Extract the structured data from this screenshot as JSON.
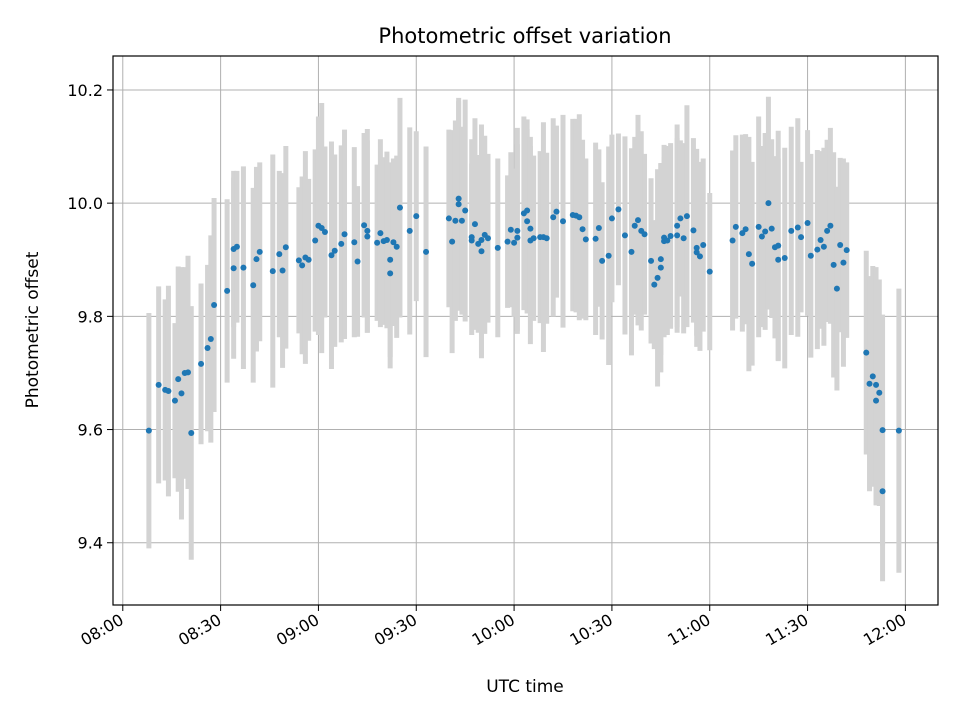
{
  "chart_data": {
    "type": "scatter",
    "title": "Photometric offset variation",
    "xlabel": "UTC time",
    "ylabel": "Photometric offset",
    "grid": true,
    "xlim": [
      "07:57",
      "12:10"
    ],
    "ylim": [
      9.29,
      10.26
    ],
    "x_ticks": [
      "08:00",
      "08:30",
      "09:00",
      "09:30",
      "10:00",
      "10:30",
      "11:00",
      "11:30",
      "12:00"
    ],
    "y_ticks": [
      9.4,
      9.6,
      9.8,
      10.0,
      10.2
    ],
    "colors": {
      "points": "#1f77b4",
      "errorbars": "#d3d3d3",
      "grid": "#b0b0b0"
    },
    "series": [
      {
        "points": [
          [
            "08:08",
            9.598,
            0.208
          ],
          [
            "08:11",
            9.679,
            0.174
          ],
          [
            "08:13",
            9.67,
            0.16
          ],
          [
            "08:14",
            9.668,
            0.186
          ],
          [
            "08:16",
            9.651,
            0.137
          ],
          [
            "08:17",
            9.689,
            0.199
          ],
          [
            "08:18",
            9.664,
            0.223
          ],
          [
            "08:19",
            9.7,
            0.187
          ],
          [
            "08:20",
            9.701,
            0.206
          ],
          [
            "08:21",
            9.594,
            0.224
          ],
          [
            "08:24",
            9.716,
            0.142
          ],
          [
            "08:26",
            9.744,
            0.147
          ],
          [
            "08:27",
            9.76,
            0.183
          ],
          [
            "08:28",
            9.82,
            0.189
          ],
          [
            "08:32",
            9.845,
            0.162
          ],
          [
            "08:34",
            9.885,
            0.16
          ],
          [
            "08:34",
            9.919,
            0.138
          ],
          [
            "08:35",
            9.923,
            0.134
          ],
          [
            "08:37",
            9.886,
            0.179
          ],
          [
            "08:40",
            9.855,
            0.172
          ],
          [
            "08:41",
            9.901,
            0.163
          ],
          [
            "08:42",
            9.914,
            0.158
          ],
          [
            "08:46",
            9.88,
            0.206
          ],
          [
            "08:48",
            9.91,
            0.147
          ],
          [
            "08:49",
            9.881,
            0.172
          ],
          [
            "08:50",
            9.922,
            0.179
          ],
          [
            "08:54",
            9.899,
            0.129
          ],
          [
            "08:55",
            9.89,
            0.157
          ],
          [
            "08:56",
            9.904,
            0.188
          ],
          [
            "08:57",
            9.9,
            0.143
          ],
          [
            "08:59",
            9.934,
            0.161
          ],
          [
            "09:00",
            9.96,
            0.193
          ],
          [
            "09:01",
            9.956,
            0.221
          ],
          [
            "09:02",
            9.949,
            0.151
          ],
          [
            "09:04",
            9.908,
            0.201
          ],
          [
            "09:05",
            9.916,
            0.17
          ],
          [
            "09:07",
            9.928,
            0.174
          ],
          [
            "09:08",
            9.945,
            0.185
          ],
          [
            "09:11",
            9.931,
            0.168
          ],
          [
            "09:12",
            9.897,
            0.133
          ],
          [
            "09:14",
            9.961,
            0.163
          ],
          [
            "09:15",
            9.941,
            0.17
          ],
          [
            "09:15",
            9.951,
            0.18
          ],
          [
            "09:18",
            9.93,
            0.138
          ],
          [
            "09:19",
            9.947,
            0.166
          ],
          [
            "09:20",
            9.933,
            0.148
          ],
          [
            "09:21",
            9.935,
            0.156
          ],
          [
            "09:22",
            9.9,
            0.172
          ],
          [
            "09:22",
            9.876,
            0.168
          ],
          [
            "09:23",
            9.931,
            0.148
          ],
          [
            "09:24",
            9.923,
            0.161
          ],
          [
            "09:25",
            9.992,
            0.194
          ],
          [
            "09:28",
            9.951,
            0.183
          ],
          [
            "09:30",
            9.977,
            0.15
          ],
          [
            "09:33",
            9.914,
            0.186
          ],
          [
            "09:40",
            9.973,
            0.157
          ],
          [
            "09:41",
            9.932,
            0.197
          ],
          [
            "09:42",
            9.969,
            0.177
          ],
          [
            "09:43",
            10.008,
            0.172
          ],
          [
            "09:43",
            9.998,
            0.188
          ],
          [
            "09:44",
            9.969,
            0.166
          ],
          [
            "09:45",
            9.987,
            0.196
          ],
          [
            "09:47",
            9.934,
            0.136
          ],
          [
            "09:47",
            9.94,
            0.173
          ],
          [
            "09:48",
            9.963,
            0.187
          ],
          [
            "09:49",
            9.928,
            0.157
          ],
          [
            "09:50",
            9.935,
            0.204
          ],
          [
            "09:50",
            9.915,
            0.189
          ],
          [
            "09:51",
            9.944,
            0.175
          ],
          [
            "09:52",
            9.938,
            0.149
          ],
          [
            "09:55",
            9.921,
            0.158
          ],
          [
            "09:58",
            9.932,
            0.117
          ],
          [
            "09:59",
            9.953,
            0.137
          ],
          [
            "10:00",
            9.93,
            0.131
          ],
          [
            "10:01",
            9.939,
            0.165
          ],
          [
            "10:01",
            9.951,
            0.182
          ],
          [
            "10:03",
            9.982,
            0.171
          ],
          [
            "10:04",
            9.987,
            0.161
          ],
          [
            "10:04",
            9.968,
            0.163
          ],
          [
            "10:05",
            9.955,
            0.146
          ],
          [
            "10:05",
            9.934,
            0.183
          ],
          [
            "10:06",
            9.938,
            0.146
          ],
          [
            "10:08",
            9.94,
            0.152
          ],
          [
            "10:09",
            9.94,
            0.203
          ],
          [
            "10:10",
            9.938,
            0.151
          ],
          [
            "10:12",
            9.975,
            0.175
          ],
          [
            "10:13",
            9.985,
            0.152
          ],
          [
            "10:15",
            9.968,
            0.188
          ],
          [
            "10:18",
            9.979,
            0.17
          ],
          [
            "10:19",
            9.978,
            0.171
          ],
          [
            "10:20",
            9.975,
            0.182
          ],
          [
            "10:21",
            9.954,
            0.158
          ],
          [
            "10:22",
            9.936,
            0.143
          ],
          [
            "10:25",
            9.937,
            0.17
          ],
          [
            "10:26",
            9.956,
            0.139
          ],
          [
            "10:27",
            9.898,
            0.139
          ],
          [
            "10:29",
            9.907,
            0.193
          ],
          [
            "10:30",
            9.973,
            0.148
          ],
          [
            "10:32",
            9.989,
            0.134
          ],
          [
            "10:34",
            9.943,
            0.175
          ],
          [
            "10:36",
            9.914,
            0.183
          ],
          [
            "10:37",
            9.96,
            0.157
          ],
          [
            "10:38",
            9.97,
            0.186
          ],
          [
            "10:39",
            9.951,
            0.176
          ],
          [
            "10:40",
            9.945,
            0.142
          ],
          [
            "10:42",
            9.898,
            0.146
          ],
          [
            "10:43",
            9.856,
            0.114
          ],
          [
            "10:44",
            9.868,
            0.192
          ],
          [
            "10:45",
            9.886,
            0.185
          ],
          [
            "10:45",
            9.901,
            0.169
          ],
          [
            "10:46",
            9.933,
            0.17
          ],
          [
            "10:46",
            9.939,
            0.142
          ],
          [
            "10:47",
            9.934,
            0.167
          ],
          [
            "10:48",
            9.942,
            0.164
          ],
          [
            "10:50",
            9.943,
            0.172
          ],
          [
            "10:50",
            9.96,
            0.179
          ],
          [
            "10:51",
            9.973,
            0.138
          ],
          [
            "10:52",
            9.938,
            0.168
          ],
          [
            "10:53",
            9.977,
            0.196
          ],
          [
            "10:55",
            9.952,
            0.163
          ],
          [
            "10:56",
            9.921,
            0.175
          ],
          [
            "10:56",
            9.913,
            0.147
          ],
          [
            "10:57",
            9.906,
            0.167
          ],
          [
            "10:58",
            9.926,
            0.153
          ],
          [
            "11:00",
            9.879,
            0.139
          ],
          [
            "11:07",
            9.934,
            0.159
          ],
          [
            "11:08",
            9.958,
            0.162
          ],
          [
            "11:10",
            9.947,
            0.174
          ],
          [
            "11:11",
            9.954,
            0.168
          ],
          [
            "11:12",
            9.91,
            0.207
          ],
          [
            "11:13",
            9.893,
            0.18
          ],
          [
            "11:15",
            9.958,
            0.195
          ],
          [
            "11:16",
            9.941,
            0.16
          ],
          [
            "11:17",
            9.95,
            0.174
          ],
          [
            "11:18",
            10.0,
            0.188
          ],
          [
            "11:19",
            9.955,
            0.158
          ],
          [
            "11:20",
            9.922,
            0.161
          ],
          [
            "11:21",
            9.925,
            0.203
          ],
          [
            "11:21",
            9.9,
            0.179
          ],
          [
            "11:23",
            9.903,
            0.195
          ],
          [
            "11:25",
            9.951,
            0.184
          ],
          [
            "11:27",
            9.957,
            0.193
          ],
          [
            "11:28",
            9.94,
            0.133
          ],
          [
            "11:30",
            9.965,
            0.164
          ],
          [
            "11:31",
            9.907,
            0.18
          ],
          [
            "11:33",
            9.918,
            0.176
          ],
          [
            "11:34",
            9.935,
            0.157
          ],
          [
            "11:35",
            9.923,
            0.175
          ],
          [
            "11:36",
            9.951,
            0.161
          ],
          [
            "11:37",
            9.96,
            0.173
          ],
          [
            "11:38",
            9.891,
            0.199
          ],
          [
            "11:39",
            9.849,
            0.18
          ],
          [
            "11:40",
            9.926,
            0.154
          ],
          [
            "11:41",
            9.895,
            0.184
          ],
          [
            "11:42",
            9.917,
            0.155
          ],
          [
            "11:48",
            9.736,
            0.18
          ],
          [
            "11:49",
            9.681,
            0.19
          ],
          [
            "11:50",
            9.694,
            0.195
          ],
          [
            "11:51",
            9.679,
            0.208
          ],
          [
            "11:51",
            9.651,
            0.185
          ],
          [
            "11:52",
            9.665,
            0.2
          ],
          [
            "11:53",
            9.491,
            0.159
          ],
          [
            "11:53",
            9.599,
            0.204
          ],
          [
            "11:58",
            9.598,
            0.251
          ]
        ]
      }
    ]
  }
}
